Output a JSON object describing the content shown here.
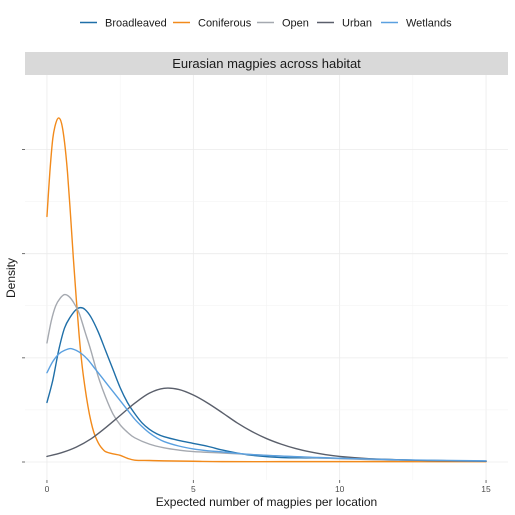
{
  "chart_data": {
    "type": "line",
    "title": "Eurasian magpies across habitat",
    "xlabel": "Expected number of magpies per location",
    "ylabel": "Density",
    "xlim": [
      -0.75,
      15.75
    ],
    "ylim": [
      0,
      1.0
    ],
    "x_ticks": [
      0,
      5,
      10,
      15
    ],
    "x_tick_labels": [
      "0",
      "5",
      "10",
      "15"
    ],
    "y_tick_labels_shown": false,
    "grid": true,
    "legend_position": "top",
    "series": [
      {
        "name": "Broadleaved",
        "color": "#1f6fa8",
        "points": [
          [
            0,
            0.16
          ],
          [
            0.2,
            0.22
          ],
          [
            0.4,
            0.3
          ],
          [
            0.6,
            0.36
          ],
          [
            0.8,
            0.39
          ],
          [
            1.0,
            0.41
          ],
          [
            1.15,
            0.415
          ],
          [
            1.3,
            0.41
          ],
          [
            1.5,
            0.39
          ],
          [
            1.75,
            0.35
          ],
          [
            2.0,
            0.3
          ],
          [
            2.25,
            0.25
          ],
          [
            2.5,
            0.2
          ],
          [
            2.75,
            0.16
          ],
          [
            3.0,
            0.13
          ],
          [
            3.25,
            0.105
          ],
          [
            3.5,
            0.088
          ],
          [
            3.75,
            0.076
          ],
          [
            4.0,
            0.068
          ],
          [
            4.5,
            0.058
          ],
          [
            5.0,
            0.05
          ],
          [
            5.5,
            0.042
          ],
          [
            6.0,
            0.032
          ],
          [
            6.5,
            0.024
          ],
          [
            7.0,
            0.018
          ],
          [
            8.0,
            0.012
          ],
          [
            9.0,
            0.011
          ],
          [
            10.0,
            0.01
          ],
          [
            11.0,
            0.008
          ],
          [
            12.0,
            0.006
          ],
          [
            13.0,
            0.004
          ],
          [
            14.0,
            0.003
          ],
          [
            15.0,
            0.002
          ]
        ]
      },
      {
        "name": "Coniferous",
        "color": "#f28a1b",
        "points": [
          [
            0,
            0.66
          ],
          [
            0.1,
            0.78
          ],
          [
            0.2,
            0.87
          ],
          [
            0.3,
            0.91
          ],
          [
            0.4,
            0.925
          ],
          [
            0.5,
            0.91
          ],
          [
            0.6,
            0.86
          ],
          [
            0.7,
            0.78
          ],
          [
            0.8,
            0.67
          ],
          [
            0.9,
            0.55
          ],
          [
            1.0,
            0.44
          ],
          [
            1.1,
            0.34
          ],
          [
            1.2,
            0.26
          ],
          [
            1.3,
            0.2
          ],
          [
            1.4,
            0.15
          ],
          [
            1.5,
            0.11
          ],
          [
            1.6,
            0.08
          ],
          [
            1.7,
            0.06
          ],
          [
            1.8,
            0.045
          ],
          [
            1.9,
            0.035
          ],
          [
            2.0,
            0.028
          ],
          [
            2.25,
            0.022
          ],
          [
            2.5,
            0.018
          ],
          [
            2.75,
            0.01
          ],
          [
            3.0,
            0.005
          ],
          [
            3.5,
            0.004
          ],
          [
            4.0,
            0.003
          ],
          [
            5.0,
            0.002
          ],
          [
            6.0,
            0.001
          ],
          [
            8.0,
            0.001
          ],
          [
            10.0,
            0.001
          ],
          [
            12.0,
            0.001
          ],
          [
            15.0,
            0.001
          ]
        ]
      },
      {
        "name": "Open",
        "color": "#a5a9b0",
        "points": [
          [
            0,
            0.32
          ],
          [
            0.15,
            0.38
          ],
          [
            0.3,
            0.42
          ],
          [
            0.45,
            0.44
          ],
          [
            0.6,
            0.45
          ],
          [
            0.75,
            0.445
          ],
          [
            0.9,
            0.43
          ],
          [
            1.1,
            0.4
          ],
          [
            1.3,
            0.35
          ],
          [
            1.5,
            0.3
          ],
          [
            1.75,
            0.23
          ],
          [
            2.0,
            0.175
          ],
          [
            2.25,
            0.13
          ],
          [
            2.5,
            0.1
          ],
          [
            2.75,
            0.08
          ],
          [
            3.0,
            0.065
          ],
          [
            3.5,
            0.048
          ],
          [
            4.0,
            0.038
          ],
          [
            4.5,
            0.032
          ],
          [
            5.0,
            0.028
          ],
          [
            6.0,
            0.024
          ],
          [
            7.0,
            0.02
          ],
          [
            8.0,
            0.016
          ],
          [
            9.0,
            0.012
          ],
          [
            10.0,
            0.009
          ],
          [
            12.0,
            0.005
          ],
          [
            15.0,
            0.002
          ]
        ]
      },
      {
        "name": "Urban",
        "color": "#5a5f6b",
        "points": [
          [
            0,
            0.015
          ],
          [
            0.5,
            0.025
          ],
          [
            1.0,
            0.04
          ],
          [
            1.5,
            0.062
          ],
          [
            2.0,
            0.092
          ],
          [
            2.5,
            0.125
          ],
          [
            3.0,
            0.158
          ],
          [
            3.5,
            0.185
          ],
          [
            4.0,
            0.198
          ],
          [
            4.5,
            0.195
          ],
          [
            5.0,
            0.18
          ],
          [
            5.5,
            0.158
          ],
          [
            6.0,
            0.132
          ],
          [
            6.5,
            0.105
          ],
          [
            7.0,
            0.082
          ],
          [
            7.5,
            0.063
          ],
          [
            8.0,
            0.048
          ],
          [
            8.5,
            0.036
          ],
          [
            9.0,
            0.027
          ],
          [
            9.5,
            0.02
          ],
          [
            10.0,
            0.015
          ],
          [
            11.0,
            0.009
          ],
          [
            12.0,
            0.006
          ],
          [
            13.0,
            0.004
          ],
          [
            14.0,
            0.003
          ],
          [
            15.0,
            0.002
          ]
        ]
      },
      {
        "name": "Wetlands",
        "color": "#5aa0e0",
        "points": [
          [
            0,
            0.24
          ],
          [
            0.2,
            0.27
          ],
          [
            0.4,
            0.29
          ],
          [
            0.6,
            0.3
          ],
          [
            0.8,
            0.305
          ],
          [
            1.0,
            0.3
          ],
          [
            1.2,
            0.29
          ],
          [
            1.4,
            0.275
          ],
          [
            1.6,
            0.255
          ],
          [
            1.8,
            0.235
          ],
          [
            2.0,
            0.215
          ],
          [
            2.25,
            0.19
          ],
          [
            2.5,
            0.165
          ],
          [
            2.75,
            0.14
          ],
          [
            3.0,
            0.115
          ],
          [
            3.25,
            0.095
          ],
          [
            3.5,
            0.078
          ],
          [
            3.75,
            0.065
          ],
          [
            4.0,
            0.055
          ],
          [
            4.5,
            0.043
          ],
          [
            5.0,
            0.035
          ],
          [
            5.5,
            0.03
          ],
          [
            6.0,
            0.027
          ],
          [
            7.0,
            0.02
          ],
          [
            8.0,
            0.016
          ],
          [
            9.0,
            0.013
          ],
          [
            10.0,
            0.01
          ],
          [
            12.0,
            0.006
          ],
          [
            15.0,
            0.003
          ]
        ]
      }
    ]
  }
}
